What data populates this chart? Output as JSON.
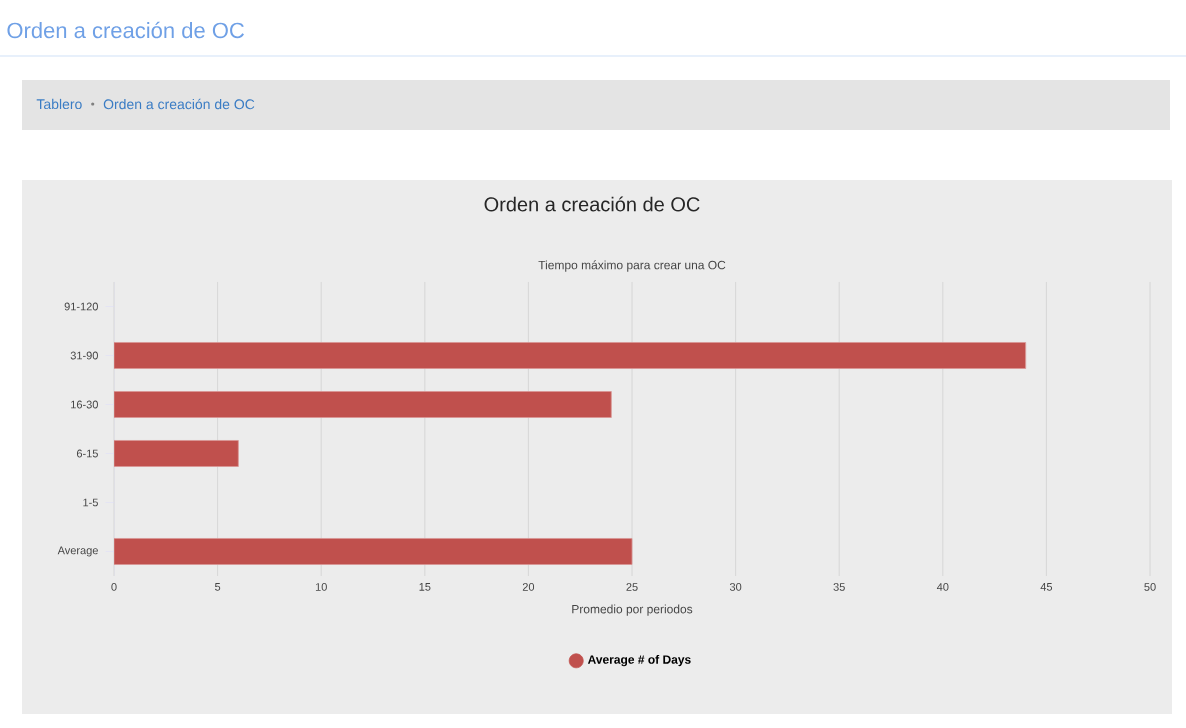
{
  "chart_data": {
    "type": "bar",
    "orientation": "horizontal",
    "title": "Orden a creación de OC",
    "subtitle": "Tiempo máximo para crear una OC",
    "xlabel": "Promedio por periodos",
    "annotations": [
      "Orden a creación de OC",
      "Tablero",
      "Orden a creación de OC"
    ],
    "categories": [
      "91-120",
      "31-90",
      "16-30",
      "6-15",
      "1-5",
      "Average"
    ],
    "series": [
      {
        "name": "Average # of Days",
        "color": "#c0504d",
        "values": [
          null,
          44,
          24,
          6,
          null,
          25
        ]
      }
    ],
    "xlim": [
      0,
      50
    ],
    "xticks": [
      0,
      5,
      10,
      15,
      20,
      25,
      30,
      35,
      40,
      45,
      50
    ],
    "grid": "x",
    "legend": "bottom"
  }
}
